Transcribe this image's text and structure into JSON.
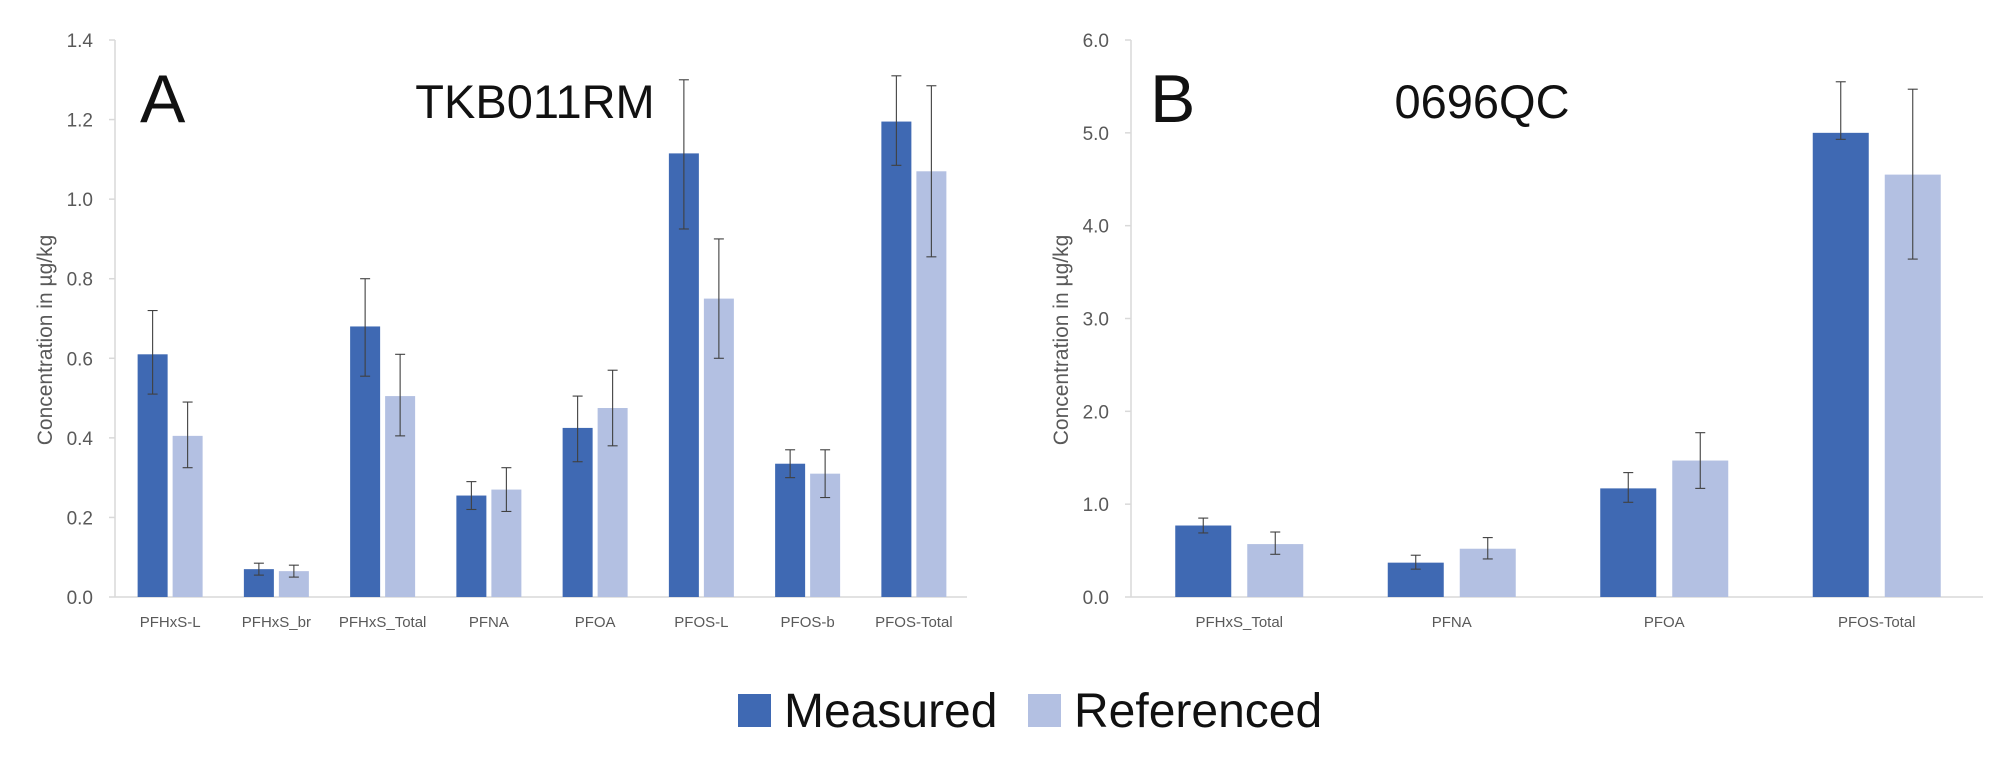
{
  "colors": {
    "measured": "#3f69b3",
    "referenced": "#b3c0e2",
    "axis": "#d9d9d9",
    "error": "#404040"
  },
  "legend": [
    {
      "label": "Measured",
      "color": "#3f69b3"
    },
    {
      "label": "Referenced",
      "color": "#b3c0e2"
    }
  ],
  "chart_data": [
    {
      "type": "bar",
      "panel_letter": "A",
      "title": "TKB011RM",
      "ylabel": "Concentration in µg/kg",
      "xlabel": "",
      "ylim": [
        0,
        1.4
      ],
      "ytick_step": 0.2,
      "ytick_labels": [
        "0.0",
        "0.2",
        "0.4",
        "0.6",
        "0.8",
        "1.0",
        "1.2",
        "1.4"
      ],
      "categories": [
        "PFHxS-L",
        "PFHxS_br",
        "PFHxS_Total",
        "PFNA",
        "PFOA",
        "PFOS-L",
        "PFOS-b",
        "PFOS-Total"
      ],
      "series": [
        {
          "name": "Measured",
          "values": [
            0.61,
            0.07,
            0.68,
            0.255,
            0.425,
            1.115,
            0.335,
            1.195
          ],
          "err_low": [
            0.51,
            0.055,
            0.555,
            0.22,
            0.34,
            0.925,
            0.3,
            1.085
          ],
          "err_high": [
            0.72,
            0.085,
            0.8,
            0.29,
            0.505,
            1.3,
            0.37,
            1.31
          ]
        },
        {
          "name": "Referenced",
          "values": [
            0.405,
            0.065,
            0.505,
            0.27,
            0.475,
            0.75,
            0.31,
            1.07
          ],
          "err_low": [
            0.325,
            0.05,
            0.405,
            0.215,
            0.38,
            0.6,
            0.25,
            0.855
          ],
          "err_high": [
            0.49,
            0.08,
            0.61,
            0.325,
            0.57,
            0.9,
            0.37,
            1.285
          ]
        }
      ]
    },
    {
      "type": "bar",
      "panel_letter": "B",
      "title": "0696QC",
      "ylabel": "Concentration in µg/kg",
      "xlabel": "",
      "ylim": [
        0,
        6
      ],
      "ytick_step": 1,
      "ytick_labels": [
        "0.0",
        "1.0",
        "2.0",
        "3.0",
        "4.0",
        "5.0",
        "6.0"
      ],
      "categories": [
        "PFHxS_Total",
        "PFNA",
        "PFOA",
        "PFOS-Total"
      ],
      "series": [
        {
          "name": "Measured",
          "values": [
            0.77,
            0.37,
            1.17,
            5.0
          ],
          "err_low": [
            0.69,
            0.3,
            1.02,
            4.93
          ],
          "err_high": [
            0.85,
            0.45,
            1.34,
            5.55
          ]
        },
        {
          "name": "Referenced",
          "values": [
            0.57,
            0.52,
            1.47,
            4.55
          ],
          "err_low": [
            0.46,
            0.41,
            1.17,
            3.64
          ],
          "err_high": [
            0.7,
            0.64,
            1.77,
            5.47
          ]
        }
      ]
    }
  ]
}
